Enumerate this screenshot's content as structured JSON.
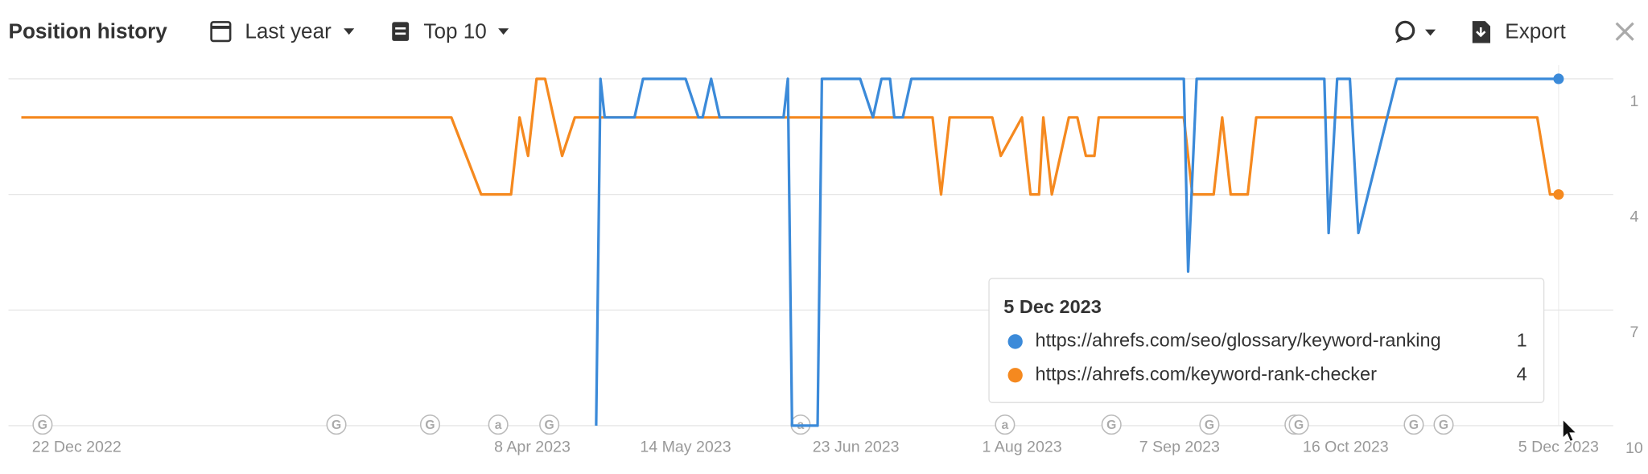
{
  "toolbar": {
    "title": "Position history",
    "period": "Last year",
    "top": "Top 10",
    "export": "Export"
  },
  "chart_data": {
    "type": "line",
    "xlim": [
      "2022-12-06",
      "2023-12-05"
    ],
    "xticks": [
      {
        "value": "2022-12-22",
        "label": "22 Dec 2022"
      },
      {
        "value": "2023-04-08",
        "label": "8 Apr 2023"
      },
      {
        "value": "2023-05-14",
        "label": "14 May 2023"
      },
      {
        "value": "2023-06-23",
        "label": "23 Jun 2023"
      },
      {
        "value": "2023-08-01",
        "label": "1 Aug 2023"
      },
      {
        "value": "2023-09-07",
        "label": "7 Sep 2023"
      },
      {
        "value": "2023-10-16",
        "label": "16 Oct 2023"
      },
      {
        "value": "2023-12-05",
        "label": "5 Dec 2023"
      }
    ],
    "ylim": [
      1,
      10
    ],
    "yticks": [
      1,
      4,
      7,
      10
    ],
    "y_inverted": true,
    "grid": true,
    "series": [
      {
        "name": "https://ahrefs.com/seo/glossary/keyword-ranking",
        "color": "#3b8ad9",
        "x": [
          "2023-04-23",
          "2023-04-24",
          "2023-04-25",
          "2023-05-02",
          "2023-05-04",
          "2023-05-14",
          "2023-05-17",
          "2023-05-18",
          "2023-05-20",
          "2023-05-22",
          "2023-06-06",
          "2023-06-07",
          "2023-06-08",
          "2023-06-14",
          "2023-06-15",
          "2023-06-24",
          "2023-06-27",
          "2023-06-29",
          "2023-07-01",
          "2023-07-02",
          "2023-07-04",
          "2023-07-06",
          "2023-09-08",
          "2023-09-09",
          "2023-09-11",
          "2023-10-11",
          "2023-10-12",
          "2023-10-14",
          "2023-10-17",
          "2023-10-19",
          "2023-10-28",
          "2023-12-05"
        ],
        "values": [
          10,
          1,
          2,
          2,
          1,
          1,
          2,
          2,
          1,
          2,
          2,
          1,
          10,
          10,
          1,
          1,
          2,
          1,
          1,
          2,
          2,
          1,
          1,
          6,
          1,
          1,
          5,
          1,
          1,
          5,
          1,
          1
        ]
      },
      {
        "name": "https://ahrefs.com/keyword-rank-checker",
        "color": "#f5891f",
        "x": [
          "2022-12-09",
          "2023-03-20",
          "2023-03-27",
          "2023-04-03",
          "2023-04-05",
          "2023-04-07",
          "2023-04-09",
          "2023-04-11",
          "2023-04-13",
          "2023-04-15",
          "2023-04-18",
          "2023-07-11",
          "2023-07-13",
          "2023-07-15",
          "2023-07-25",
          "2023-07-27",
          "2023-08-01",
          "2023-08-03",
          "2023-08-05",
          "2023-08-06",
          "2023-08-08",
          "2023-08-12",
          "2023-08-14",
          "2023-08-16",
          "2023-08-18",
          "2023-08-19",
          "2023-09-08",
          "2023-09-10",
          "2023-09-15",
          "2023-09-17",
          "2023-09-19",
          "2023-09-23",
          "2023-09-25",
          "2023-11-30",
          "2023-12-03",
          "2023-12-05"
        ],
        "values": [
          2,
          2,
          4,
          4,
          2,
          3,
          1,
          1,
          2,
          3,
          2,
          2,
          4,
          2,
          2,
          3,
          2,
          4,
          4,
          2,
          4,
          2,
          2,
          3,
          3,
          2,
          2,
          4,
          4,
          2,
          4,
          4,
          2,
          2,
          4,
          4
        ]
      }
    ],
    "annotations": [
      {
        "x": "2022-12-14",
        "label": "G"
      },
      {
        "x": "2023-02-21",
        "label": "G"
      },
      {
        "x": "2023-03-15",
        "label": "G"
      },
      {
        "x": "2023-03-31",
        "label": "a"
      },
      {
        "x": "2023-04-12",
        "label": "G"
      },
      {
        "x": "2023-06-10",
        "label": "a"
      },
      {
        "x": "2023-07-28",
        "label": "a"
      },
      {
        "x": "2023-08-22",
        "label": "G"
      },
      {
        "x": "2023-09-14",
        "label": "G"
      },
      {
        "x": "2023-10-04",
        "label": "G"
      },
      {
        "x": "2023-10-05",
        "label": "G"
      },
      {
        "x": "2023-11-01",
        "label": "G"
      },
      {
        "x": "2023-11-08",
        "label": "G"
      }
    ],
    "tooltip": {
      "title": "5 Dec 2023"
    }
  }
}
